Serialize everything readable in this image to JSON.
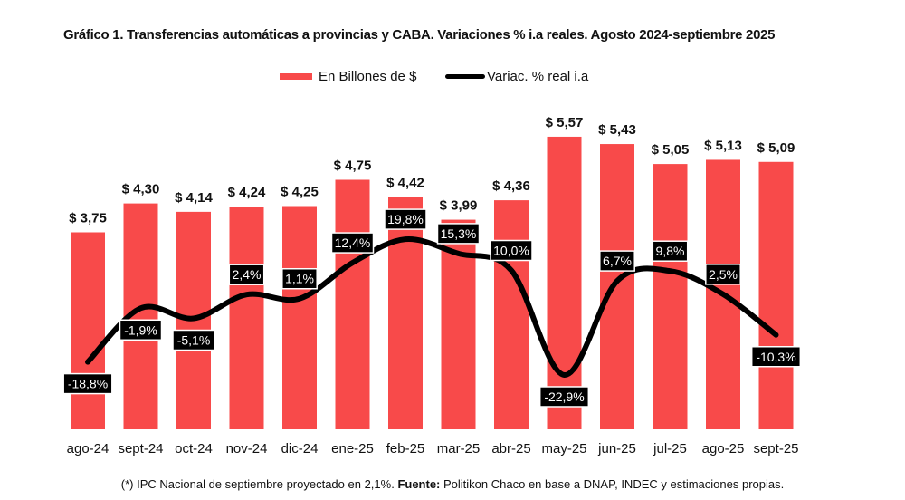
{
  "chart_data": {
    "type": "bar+line",
    "title": "Gráfico 1. Transferencias automáticas a provincias y CABA. Variaciones % i.a reales. Agosto 2024-septiembre 2025",
    "categories": [
      "ago-24",
      "sept-24",
      "oct-24",
      "nov-24",
      "dic-24",
      "ene-25",
      "feb-25",
      "mar-25",
      "abr-25",
      "may-25",
      "jun-25",
      "jul-25",
      "ago-25",
      "sept-25"
    ],
    "series": [
      {
        "name": "En Billones de $",
        "type": "bar",
        "color": "#f84a4a",
        "values": [
          3.75,
          4.3,
          4.14,
          4.24,
          4.25,
          4.75,
          4.42,
          3.99,
          4.36,
          5.57,
          5.43,
          5.05,
          5.13,
          5.09
        ],
        "labels": [
          "$ 3,75",
          "$ 4,30",
          "$ 4,14",
          "$ 4,24",
          "$ 4,25",
          "$ 4,75",
          "$ 4,42",
          "$ 3,99",
          "$ 4,36",
          "$ 5,57",
          "$ 5,43",
          "$ 5,05",
          "$ 5,13",
          "$ 5,09"
        ]
      },
      {
        "name": "Variac. % real i.a",
        "type": "line",
        "color": "#000000",
        "values": [
          -18.8,
          -1.9,
          -5.1,
          2.4,
          1.1,
          12.4,
          19.8,
          15.3,
          10.0,
          -22.9,
          6.7,
          9.8,
          2.5,
          -10.3
        ],
        "labels": [
          "-18,8%",
          "-1,9%",
          "-5,1%",
          "2,4%",
          "1,1%",
          "12,4%",
          "19,8%",
          "15,3%",
          "10,0%",
          "-22,9%",
          "6,7%",
          "9,8%",
          "2,5%",
          "-10,3%"
        ],
        "label_placement": [
          "below",
          "below",
          "below",
          "above",
          "above",
          "above",
          "above",
          "above",
          "above",
          "below",
          "above",
          "above",
          "above",
          "below"
        ]
      }
    ],
    "xlabel": "",
    "ylabel": "",
    "ylim_bars": [
      0,
      5.57
    ],
    "grid": false,
    "legend": "top-center",
    "axes_visible": false
  },
  "legend": {
    "bar_label": "En Billones de $",
    "line_label": "Variac. % real i.a"
  },
  "footnote": {
    "prefix": "(*) IPC Nacional de septiembre proyectado en 2,1%. ",
    "source_label": "Fuente:",
    "source_text": " Politikon Chaco en base a DNAP, INDEC y estimaciones propias."
  }
}
